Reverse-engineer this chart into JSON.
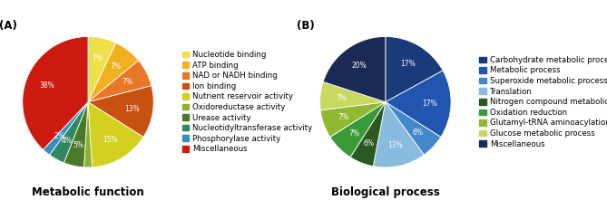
{
  "chart_A": {
    "title": "Metabolic function",
    "labels": [
      "Nucleotide binding",
      "ATP binding",
      "NAD or NADH binding",
      "Ion binding",
      "Nutrient reservoir activity",
      "Oxidoreductase activity",
      "Urease activity",
      "Nucleotidyltransferase activity",
      "Phosphorylase activity",
      "Miscellaneous"
    ],
    "values": [
      7,
      7,
      7,
      13,
      15,
      2,
      5,
      4,
      2,
      38
    ],
    "colors": [
      "#ede04a",
      "#f0b020",
      "#e87828",
      "#c85010",
      "#d4d020",
      "#90b030",
      "#4a7a28",
      "#308860",
      "#3090c0",
      "#cc1a10"
    ],
    "pct_labels": [
      "7%",
      "7%",
      "7%",
      "13%",
      "15%",
      "",
      "5%",
      "4%",
      "2%",
      "38%"
    ]
  },
  "chart_B": {
    "title": "Biological process",
    "labels": [
      "Carbohydrate metabolic process",
      "Metabolic process",
      "Superoxide metabolic process",
      "Translation",
      "Nitrogen compound metabolic process",
      "Oxidation reduction",
      "Glutamyl-tRNA aminoacylation",
      "Glucose metabolic process",
      "Miscellaneous"
    ],
    "values": [
      17,
      17,
      6,
      13,
      6,
      7,
      7,
      7,
      20
    ],
    "colors": [
      "#1a3a7a",
      "#2255b0",
      "#4488cc",
      "#88bbdd",
      "#2a5a20",
      "#3a9a3a",
      "#90b830",
      "#c8d860",
      "#1a2a55"
    ],
    "pct_labels": [
      "17%",
      "17%",
      "6%",
      "13%",
      "6%",
      "7%",
      "7%",
      "7%",
      "20%"
    ]
  },
  "legend_fontsize": 6.2,
  "title_fontsize": 8.5,
  "ab_fontsize": 8.5
}
